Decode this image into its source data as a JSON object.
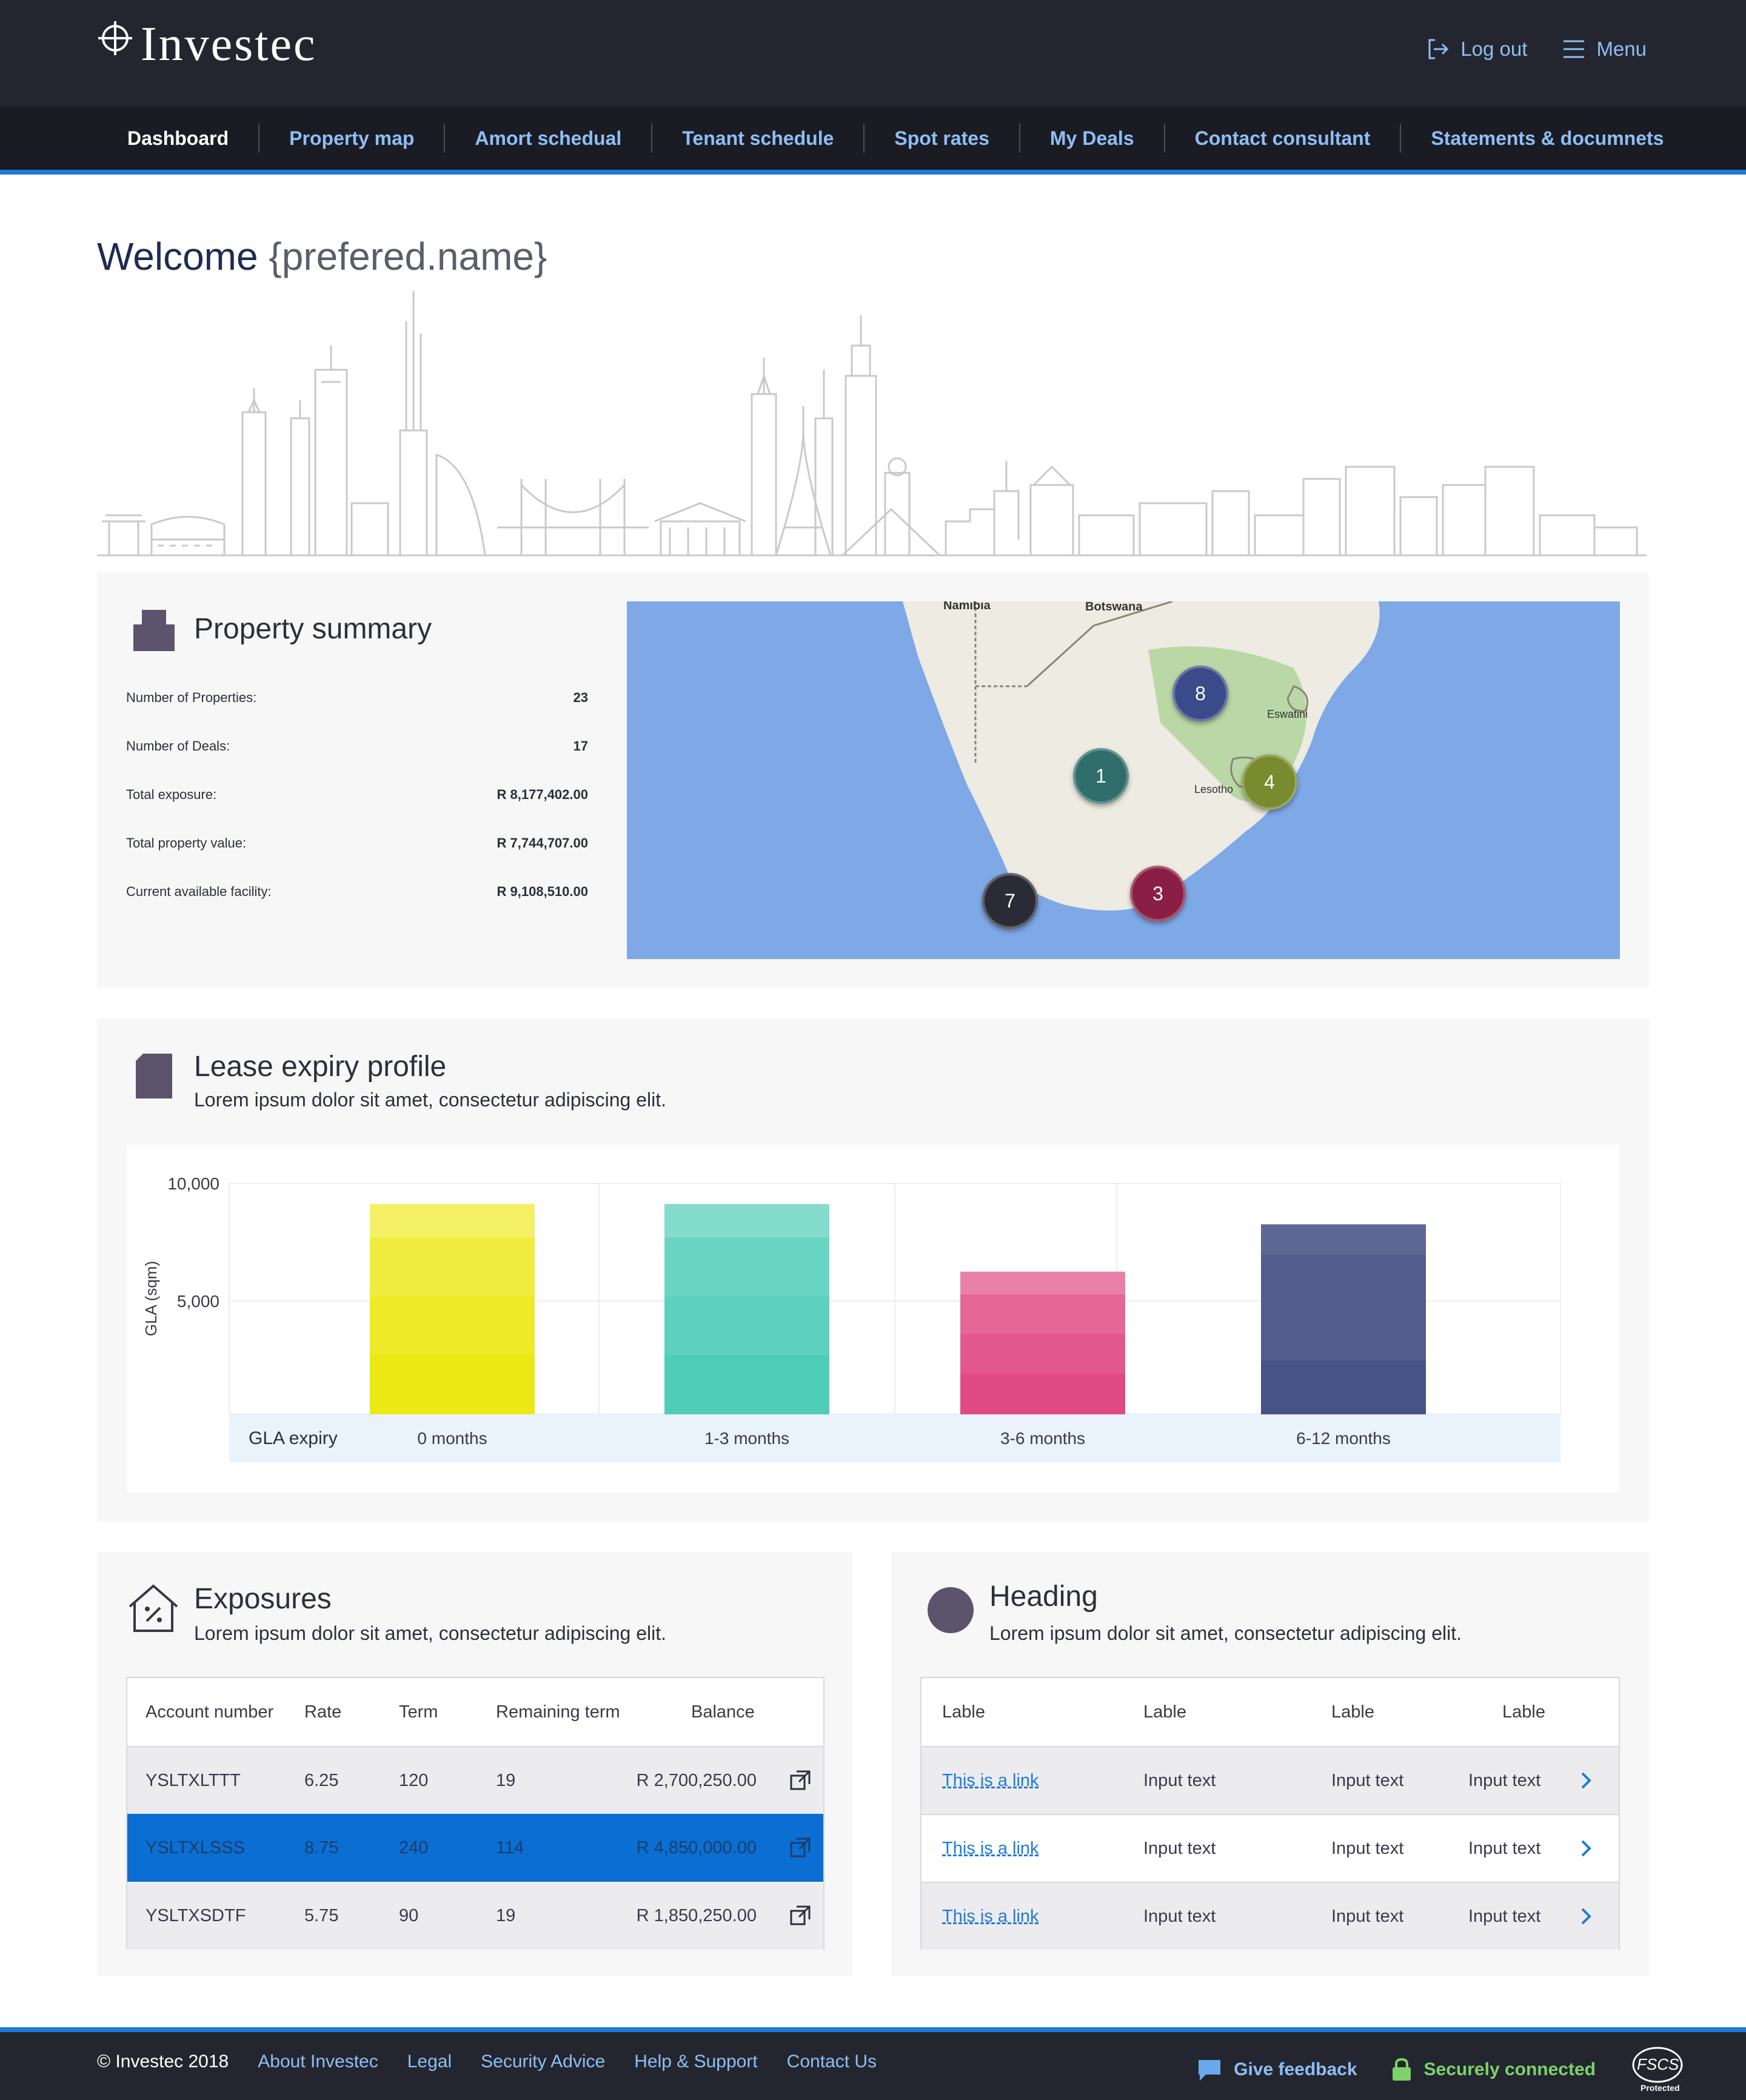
{
  "brand": {
    "name": "Investec"
  },
  "header": {
    "logout_label": "Log out",
    "menu_label": "Menu"
  },
  "nav": {
    "items": [
      {
        "label": "Dashboard"
      },
      {
        "label": "Property map"
      },
      {
        "label": "Amort schedual"
      },
      {
        "label": "Tenant schedule"
      },
      {
        "label": "Spot rates"
      },
      {
        "label": "My Deals"
      },
      {
        "label": "Contact consultant"
      },
      {
        "label": "Statements & documnets"
      }
    ]
  },
  "welcome": {
    "prefix": "Welcome",
    "name": "{prefered.name}"
  },
  "property_summary": {
    "title": "Property summary",
    "rows": [
      {
        "label": "Number of Properties:",
        "value": "23"
      },
      {
        "label": "Number of Deals:",
        "value": "17"
      },
      {
        "label": "Total exposure:",
        "value": "R 8,177,402.00"
      },
      {
        "label": "Total property value:",
        "value": "R 7,744,707.00"
      },
      {
        "label": "Current available facility:",
        "value": "R 9,108,510.00"
      }
    ]
  },
  "map": {
    "labels": {
      "namibia": "Namibia",
      "botswana": "Botswana",
      "lesotho": "Lesotho",
      "eswatini": "Eswatini"
    },
    "markers": [
      {
        "label": "8",
        "color": "#3b4a8a"
      },
      {
        "label": "1",
        "color": "#2f6e6a"
      },
      {
        "label": "4",
        "color": "#7a8a2e"
      },
      {
        "label": "7",
        "color": "#2a2b36"
      },
      {
        "label": "3",
        "color": "#8a1e45"
      }
    ]
  },
  "lease": {
    "title": "Lease expiry profile",
    "subtitle": "Lorem ipsum dolor sit amet, consectetur adipiscing elit."
  },
  "chart_data": {
    "type": "bar",
    "ylabel": "GLA (sqm)",
    "xlabel": "GLA expiry",
    "ylim": [
      0,
      10000
    ],
    "yticks": [
      "10,000",
      "5,000"
    ],
    "categories": [
      "0 months",
      "1-3 months",
      "3-6 months",
      "6-12 months"
    ],
    "values": [
      9300,
      9300,
      6300,
      8400
    ],
    "colors": [
      "#ece814",
      "#4fcdb7",
      "#e04a82",
      "#475387"
    ],
    "grid": true
  },
  "exposures": {
    "title": "Exposures",
    "subtitle": "Lorem ipsum dolor sit amet, consectetur adipiscing elit.",
    "headers": [
      "Account number",
      "Rate",
      "Term",
      "Remaining term",
      "Balance"
    ],
    "rows": [
      {
        "account": "YSLTXLTTT",
        "rate": "6.25",
        "term": "120",
        "remaining": "19",
        "balance": "R 2,700,250.00"
      },
      {
        "account": "YSLTXLSSS",
        "rate": "8.75",
        "term": "240",
        "remaining": "114",
        "balance": "R 4,850,000.00"
      },
      {
        "account": "YSLTXSDTF",
        "rate": "5.75",
        "term": "90",
        "remaining": "19",
        "balance": "R 1,850,250.00"
      }
    ]
  },
  "heading_card": {
    "title": "Heading",
    "subtitle": "Lorem ipsum dolor sit amet, consectetur adipiscing elit.",
    "headers": [
      "Lable",
      "Lable",
      "Lable",
      "Lable"
    ],
    "rows": [
      {
        "link": "This is a link",
        "c1": "Input text",
        "c2": "Input text",
        "c3": "Input text"
      },
      {
        "link": "This is a link",
        "c1": "Input text",
        "c2": "Input text",
        "c3": "Input text"
      },
      {
        "link": "This is a link",
        "c1": "Input text",
        "c2": "Input text",
        "c3": "Input text"
      }
    ]
  },
  "footer": {
    "copyright": "© Investec 2018",
    "links": [
      "About Investec",
      "Legal",
      "Security Advice",
      "Help & Support",
      "Contact Us"
    ],
    "feedback": "Give feedback",
    "secure": "Securely connected",
    "fscs": "FSCS",
    "fscs_sub": "Protected"
  }
}
